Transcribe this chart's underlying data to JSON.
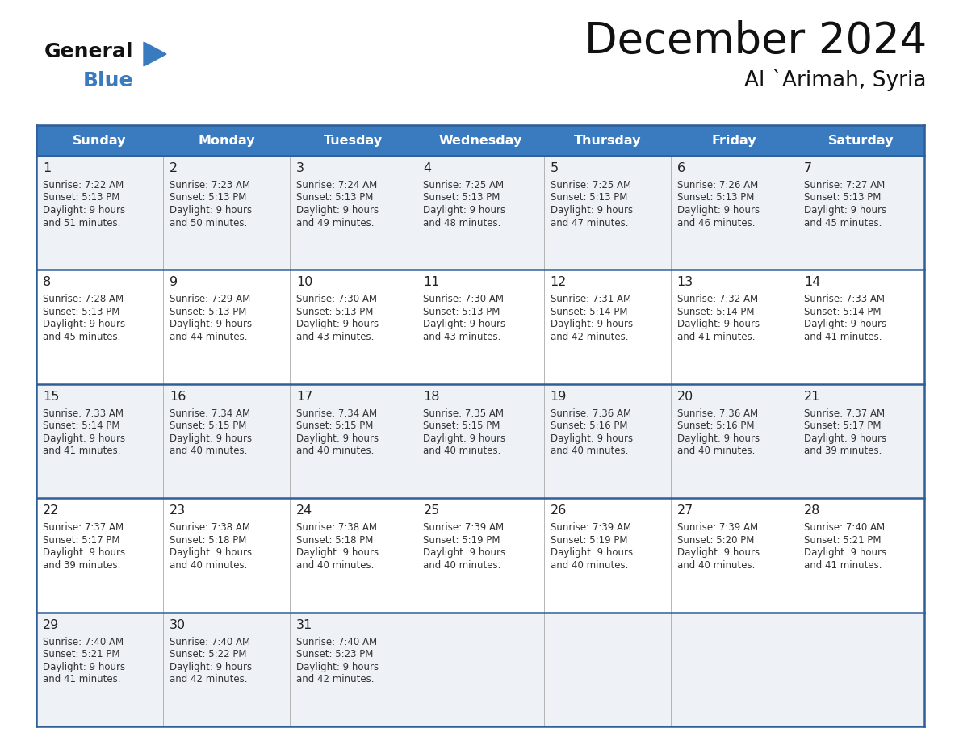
{
  "title": "December 2024",
  "subtitle": "Al `Arimah, Syria",
  "header_bg": "#3a7abf",
  "header_text": "#ffffff",
  "row_bg_odd": "#eef2f7",
  "row_bg_even": "#ffffff",
  "day_num_color": "#222222",
  "cell_text_color": "#333333",
  "border_color": "#2e5f99",
  "sep_color": "#aaaaaa",
  "logo_general_color": "#111111",
  "logo_blue_color": "#3a7abf",
  "logo_triangle_color": "#3a7abf",
  "days_of_week": [
    "Sunday",
    "Monday",
    "Tuesday",
    "Wednesday",
    "Thursday",
    "Friday",
    "Saturday"
  ],
  "weeks": [
    [
      {
        "day": "1",
        "sunrise": "7:22 AM",
        "sunset": "5:13 PM",
        "daylight_h": "9 hours",
        "daylight_m": "and 51 minutes."
      },
      {
        "day": "2",
        "sunrise": "7:23 AM",
        "sunset": "5:13 PM",
        "daylight_h": "9 hours",
        "daylight_m": "and 50 minutes."
      },
      {
        "day": "3",
        "sunrise": "7:24 AM",
        "sunset": "5:13 PM",
        "daylight_h": "9 hours",
        "daylight_m": "and 49 minutes."
      },
      {
        "day": "4",
        "sunrise": "7:25 AM",
        "sunset": "5:13 PM",
        "daylight_h": "9 hours",
        "daylight_m": "and 48 minutes."
      },
      {
        "day": "5",
        "sunrise": "7:25 AM",
        "sunset": "5:13 PM",
        "daylight_h": "9 hours",
        "daylight_m": "and 47 minutes."
      },
      {
        "day": "6",
        "sunrise": "7:26 AM",
        "sunset": "5:13 PM",
        "daylight_h": "9 hours",
        "daylight_m": "and 46 minutes."
      },
      {
        "day": "7",
        "sunrise": "7:27 AM",
        "sunset": "5:13 PM",
        "daylight_h": "9 hours",
        "daylight_m": "and 45 minutes."
      }
    ],
    [
      {
        "day": "8",
        "sunrise": "7:28 AM",
        "sunset": "5:13 PM",
        "daylight_h": "9 hours",
        "daylight_m": "and 45 minutes."
      },
      {
        "day": "9",
        "sunrise": "7:29 AM",
        "sunset": "5:13 PM",
        "daylight_h": "9 hours",
        "daylight_m": "and 44 minutes."
      },
      {
        "day": "10",
        "sunrise": "7:30 AM",
        "sunset": "5:13 PM",
        "daylight_h": "9 hours",
        "daylight_m": "and 43 minutes."
      },
      {
        "day": "11",
        "sunrise": "7:30 AM",
        "sunset": "5:13 PM",
        "daylight_h": "9 hours",
        "daylight_m": "and 43 minutes."
      },
      {
        "day": "12",
        "sunrise": "7:31 AM",
        "sunset": "5:14 PM",
        "daylight_h": "9 hours",
        "daylight_m": "and 42 minutes."
      },
      {
        "day": "13",
        "sunrise": "7:32 AM",
        "sunset": "5:14 PM",
        "daylight_h": "9 hours",
        "daylight_m": "and 41 minutes."
      },
      {
        "day": "14",
        "sunrise": "7:33 AM",
        "sunset": "5:14 PM",
        "daylight_h": "9 hours",
        "daylight_m": "and 41 minutes."
      }
    ],
    [
      {
        "day": "15",
        "sunrise": "7:33 AM",
        "sunset": "5:14 PM",
        "daylight_h": "9 hours",
        "daylight_m": "and 41 minutes."
      },
      {
        "day": "16",
        "sunrise": "7:34 AM",
        "sunset": "5:15 PM",
        "daylight_h": "9 hours",
        "daylight_m": "and 40 minutes."
      },
      {
        "day": "17",
        "sunrise": "7:34 AM",
        "sunset": "5:15 PM",
        "daylight_h": "9 hours",
        "daylight_m": "and 40 minutes."
      },
      {
        "day": "18",
        "sunrise": "7:35 AM",
        "sunset": "5:15 PM",
        "daylight_h": "9 hours",
        "daylight_m": "and 40 minutes."
      },
      {
        "day": "19",
        "sunrise": "7:36 AM",
        "sunset": "5:16 PM",
        "daylight_h": "9 hours",
        "daylight_m": "and 40 minutes."
      },
      {
        "day": "20",
        "sunrise": "7:36 AM",
        "sunset": "5:16 PM",
        "daylight_h": "9 hours",
        "daylight_m": "and 40 minutes."
      },
      {
        "day": "21",
        "sunrise": "7:37 AM",
        "sunset": "5:17 PM",
        "daylight_h": "9 hours",
        "daylight_m": "and 39 minutes."
      }
    ],
    [
      {
        "day": "22",
        "sunrise": "7:37 AM",
        "sunset": "5:17 PM",
        "daylight_h": "9 hours",
        "daylight_m": "and 39 minutes."
      },
      {
        "day": "23",
        "sunrise": "7:38 AM",
        "sunset": "5:18 PM",
        "daylight_h": "9 hours",
        "daylight_m": "and 40 minutes."
      },
      {
        "day": "24",
        "sunrise": "7:38 AM",
        "sunset": "5:18 PM",
        "daylight_h": "9 hours",
        "daylight_m": "and 40 minutes."
      },
      {
        "day": "25",
        "sunrise": "7:39 AM",
        "sunset": "5:19 PM",
        "daylight_h": "9 hours",
        "daylight_m": "and 40 minutes."
      },
      {
        "day": "26",
        "sunrise": "7:39 AM",
        "sunset": "5:19 PM",
        "daylight_h": "9 hours",
        "daylight_m": "and 40 minutes."
      },
      {
        "day": "27",
        "sunrise": "7:39 AM",
        "sunset": "5:20 PM",
        "daylight_h": "9 hours",
        "daylight_m": "and 40 minutes."
      },
      {
        "day": "28",
        "sunrise": "7:40 AM",
        "sunset": "5:21 PM",
        "daylight_h": "9 hours",
        "daylight_m": "and 41 minutes."
      }
    ],
    [
      {
        "day": "29",
        "sunrise": "7:40 AM",
        "sunset": "5:21 PM",
        "daylight_h": "9 hours",
        "daylight_m": "and 41 minutes."
      },
      {
        "day": "30",
        "sunrise": "7:40 AM",
        "sunset": "5:22 PM",
        "daylight_h": "9 hours",
        "daylight_m": "and 42 minutes."
      },
      {
        "day": "31",
        "sunrise": "7:40 AM",
        "sunset": "5:23 PM",
        "daylight_h": "9 hours",
        "daylight_m": "and 42 minutes."
      },
      null,
      null,
      null,
      null
    ]
  ],
  "fig_width": 11.88,
  "fig_height": 9.18,
  "dpi": 100
}
